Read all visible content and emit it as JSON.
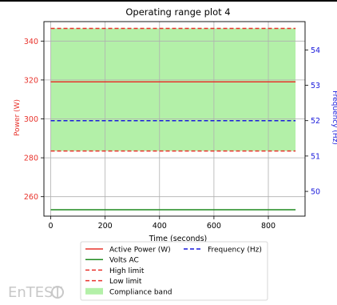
{
  "chart_data": {
    "type": "line",
    "title": "Operating range plot 4",
    "xlabel": "Time (seconds)",
    "ylabel_left": "Power (W)",
    "ylabel_right": "Frequency (Hz)",
    "x_range": [
      -25,
      935
    ],
    "y_left_range": [
      250,
      350
    ],
    "y_right_range": [
      49.3,
      54.8
    ],
    "x_ticks": [
      0,
      200,
      400,
      600,
      800
    ],
    "y_left_ticks": [
      260,
      280,
      300,
      320,
      340
    ],
    "y_right_ticks": [
      50,
      51,
      52,
      53,
      54
    ],
    "grid": true,
    "legend_position": "below",
    "series": [
      {
        "name": "Active Power (W)",
        "axis": "left",
        "style": "solid",
        "color": "#e8332c",
        "x": [
          0,
          900
        ],
        "y": [
          319,
          319
        ]
      },
      {
        "name": "Volts AC",
        "axis": "left",
        "style": "solid",
        "color": "#1f8a1f",
        "x": [
          0,
          900
        ],
        "y": [
          253.3,
          253.3
        ]
      },
      {
        "name": "High limit",
        "axis": "left",
        "style": "dashed",
        "color": "#e8332c",
        "x": [
          0,
          900
        ],
        "y": [
          346.5,
          346.5
        ]
      },
      {
        "name": "Low limit",
        "axis": "left",
        "style": "dashed",
        "color": "#e8332c",
        "x": [
          0,
          900
        ],
        "y": [
          283.5,
          283.5
        ]
      },
      {
        "name": "Frequency (Hz)",
        "axis": "right",
        "style": "dashed",
        "color": "#1a1adb",
        "x": [
          0,
          900
        ],
        "y": [
          52,
          52
        ]
      }
    ],
    "band": {
      "name": "Compliance band",
      "axis": "left",
      "color": "#b3f0a8",
      "x": [
        0,
        900
      ],
      "y_low": 283.5,
      "y_high": 346.5
    },
    "legend": {
      "col1": [
        "Active Power (W)",
        "Volts AC",
        "High limit",
        "Low limit",
        "Compliance band"
      ],
      "col2": [
        "Frequency (Hz)"
      ]
    }
  },
  "watermark": {
    "text": "EnTEST",
    "color": "#c8c8c8"
  }
}
